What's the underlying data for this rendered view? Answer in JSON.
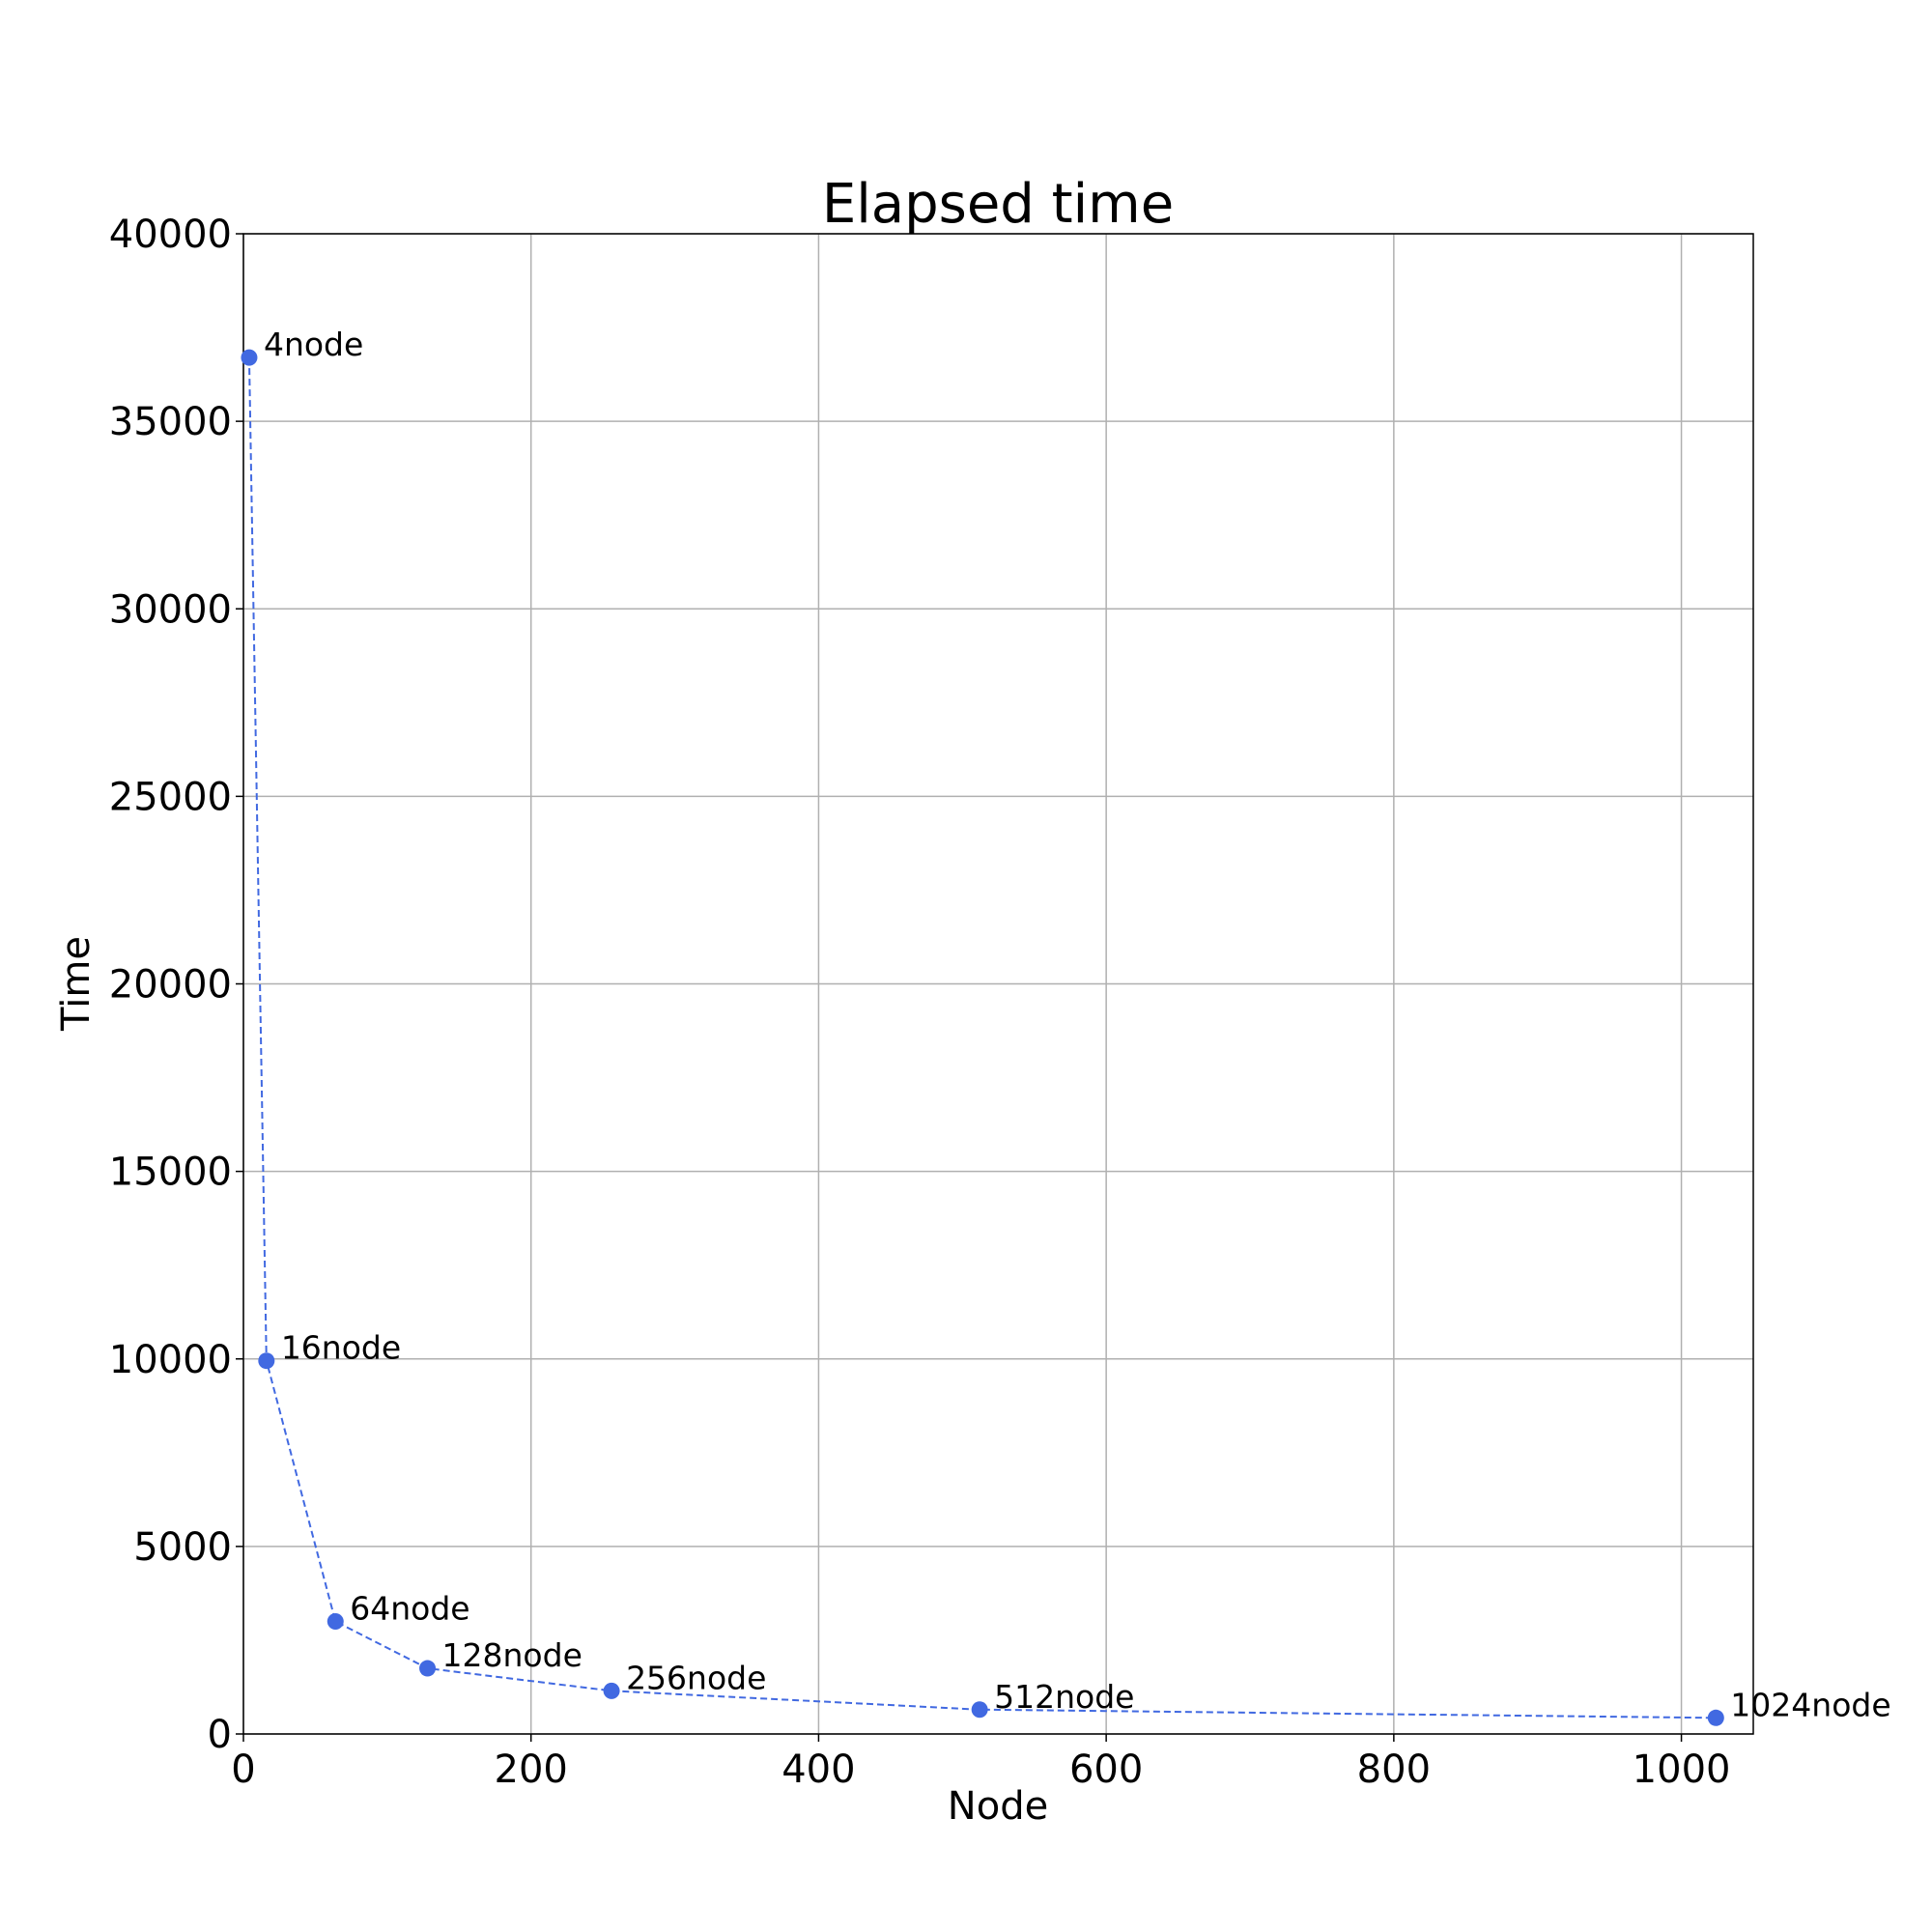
{
  "chart_data": {
    "type": "line",
    "title": "Elapsed time",
    "xlabel": "Node",
    "ylabel": "Time",
    "xlim": [
      0,
      1050
    ],
    "ylim": [
      0,
      40000
    ],
    "x_ticks": [
      0,
      200,
      400,
      600,
      800,
      1000
    ],
    "y_ticks": [
      0,
      5000,
      10000,
      15000,
      20000,
      25000,
      30000,
      35000,
      40000
    ],
    "grid": true,
    "line_style": "dashed",
    "marker": "circle",
    "color": "#4169e1",
    "points": [
      {
        "x": 4,
        "y": 36700,
        "label": "4node"
      },
      {
        "x": 16,
        "y": 9950,
        "label": "16node"
      },
      {
        "x": 64,
        "y": 3000,
        "label": "64node"
      },
      {
        "x": 128,
        "y": 1750,
        "label": "128node"
      },
      {
        "x": 256,
        "y": 1150,
        "label": "256node"
      },
      {
        "x": 512,
        "y": 650,
        "label": "512node"
      },
      {
        "x": 1024,
        "y": 430,
        "label": "1024node"
      }
    ]
  }
}
